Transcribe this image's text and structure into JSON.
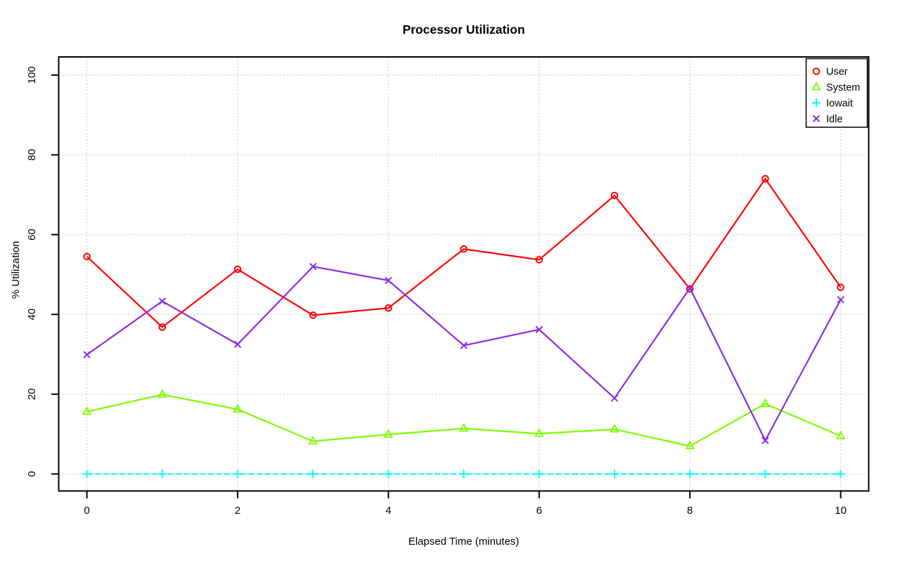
{
  "chart_data": {
    "type": "line",
    "title": "Processor Utilization",
    "xlabel": "Elapsed Time (minutes)",
    "ylabel": "% Utilization",
    "x": [
      0,
      1,
      2,
      3,
      4,
      5,
      6,
      7,
      8,
      9,
      10
    ],
    "xticks": [
      0,
      2,
      4,
      6,
      8,
      10
    ],
    "yticks": [
      0,
      20,
      40,
      60,
      80,
      100
    ],
    "xlim": [
      0,
      10
    ],
    "ylim": [
      0,
      100
    ],
    "grid": "dotted",
    "grid_color": "#C9C9C9",
    "frame_color": "#000000",
    "background": "#FFFFFF",
    "legend_position": "top-right",
    "series": [
      {
        "name": "User",
        "color": "#FF0000",
        "marker": "circle",
        "line_style": "solid",
        "values": [
          54.5,
          36.8,
          51.3,
          39.8,
          41.6,
          56.4,
          53.7,
          69.8,
          46.4,
          74.0,
          46.8
        ]
      },
      {
        "name": "System",
        "color": "#7CFC00",
        "marker": "triangle",
        "line_style": "solid",
        "values": [
          15.6,
          19.9,
          16.2,
          8.2,
          9.9,
          11.4,
          10.1,
          11.2,
          7.0,
          17.6,
          9.5
        ]
      },
      {
        "name": "Iowait",
        "color": "#00FFFF",
        "marker": "plus",
        "line_style": "dashed",
        "values": [
          0,
          0,
          0,
          0,
          0,
          0,
          0,
          0,
          0,
          0,
          0
        ]
      },
      {
        "name": "Idle",
        "color": "#8A2BE2",
        "marker": "x",
        "line_style": "solid",
        "values": [
          29.9,
          43.3,
          32.5,
          52.0,
          48.5,
          32.2,
          36.2,
          19.0,
          46.6,
          8.4,
          43.7
        ]
      }
    ]
  }
}
